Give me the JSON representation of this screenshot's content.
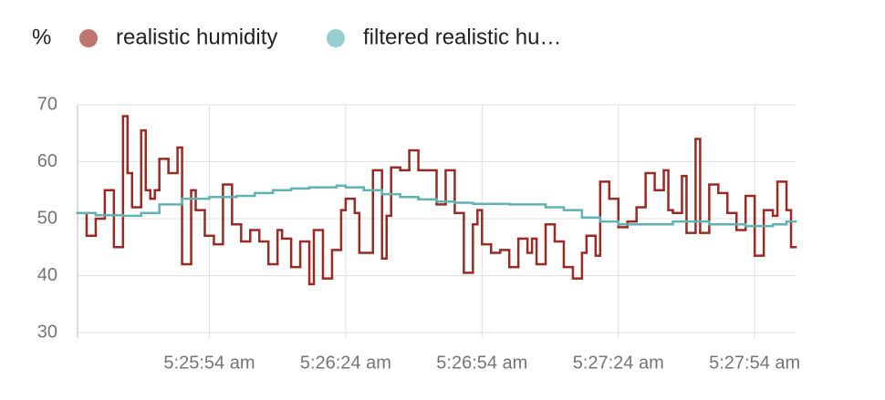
{
  "chart_data": {
    "type": "step-line",
    "unit": "%",
    "series": [
      {
        "name": "realistic humidity",
        "color": "#9b2a24",
        "x": [
          "5:25:25 am",
          "5:25:27 am",
          "5:25:29 am",
          "5:25:31 am",
          "5:25:33 am",
          "5:25:35 am",
          "5:25:36 am",
          "5:25:37 am",
          "5:25:39 am",
          "5:25:40 am",
          "5:25:41 am",
          "5:25:42 am",
          "5:25:43 am",
          "5:25:45 am",
          "5:25:47 am",
          "5:25:48 am",
          "5:25:50 am",
          "5:25:51 am",
          "5:25:53 am",
          "5:25:55 am",
          "5:25:57 am",
          "5:25:59 am",
          "5:26:01 am",
          "5:26:03 am",
          "5:26:05 am",
          "5:26:07 am",
          "5:26:09 am",
          "5:26:10 am",
          "5:26:12 am",
          "5:26:14 am",
          "5:26:16 am",
          "5:26:17 am",
          "5:26:19 am",
          "5:26:21 am",
          "5:26:23 am",
          "5:26:24 am",
          "5:26:26 am",
          "5:26:27 am",
          "5:26:30 am",
          "5:26:32 am",
          "5:26:33 am",
          "5:26:34 am",
          "5:26:36 am",
          "5:26:38 am",
          "5:26:40 am",
          "5:26:44 am",
          "5:26:46 am",
          "5:26:48 am",
          "5:26:50 am",
          "5:26:52 am",
          "5:26:53 am",
          "5:26:54 am",
          "5:26:56 am",
          "5:26:58 am",
          "5:27:00 am",
          "5:27:02 am",
          "5:27:04 am",
          "5:27:05 am",
          "5:27:06 am",
          "5:27:08 am",
          "5:27:10 am",
          "5:27:12 am",
          "5:27:14 am",
          "5:27:16 am",
          "5:27:17 am",
          "5:27:19 am",
          "5:27:20 am",
          "5:27:22 am",
          "5:27:24 am",
          "5:27:26 am",
          "5:27:28 am",
          "5:27:30 am",
          "5:27:32 am",
          "5:27:34 am",
          "5:27:35 am",
          "5:27:36 am",
          "5:27:38 am",
          "5:27:39 am",
          "5:27:41 am",
          "5:27:42 am",
          "5:27:44 am",
          "5:27:46 am",
          "5:27:48 am",
          "5:27:50 am",
          "5:27:52 am",
          "5:27:54 am",
          "5:27:56 am",
          "5:27:58 am",
          "5:27:59 am",
          "5:28:01 am",
          "5:28:02 am"
        ],
        "values": [
          51,
          47,
          50,
          55,
          45,
          68,
          58,
          52,
          65.5,
          55,
          53.5,
          55,
          60.5,
          58,
          62.5,
          42,
          55,
          51.5,
          47,
          45.5,
          56,
          49,
          46,
          48,
          46,
          42,
          48,
          46.5,
          41.5,
          46,
          38.5,
          48,
          39.5,
          44.5,
          51.5,
          53.5,
          51,
          44,
          58.5,
          43,
          50.5,
          59,
          58.5,
          62,
          58.5,
          52.5,
          58.5,
          51,
          40.5,
          49,
          51.5,
          45.5,
          44,
          44.5,
          41.5,
          46.5,
          44,
          46.5,
          42,
          49,
          46,
          41.5,
          39.5,
          44,
          47,
          43.5,
          56.5,
          53.5,
          48.5,
          49.5,
          52,
          58,
          55,
          58.5,
          51.5,
          51,
          57.5,
          47.5,
          64,
          47.5,
          56,
          54.5,
          51,
          48,
          54,
          43.5,
          51.5,
          50.5,
          56.5,
          51.5,
          45
        ]
      },
      {
        "name": "filtered realistic hu…",
        "color": "#5fb4b3",
        "x": [
          "5:25:25 am",
          "5:25:29 am",
          "5:25:35 am",
          "5:25:39 am",
          "5:25:43 am",
          "5:25:48 am",
          "5:25:54 am",
          "5:26:00 am",
          "5:26:04 am",
          "5:26:08 am",
          "5:26:12 am",
          "5:26:16 am",
          "5:26:22 am",
          "5:26:24 am",
          "5:26:28 am",
          "5:26:32 am",
          "5:26:36 am",
          "5:26:40 am",
          "5:26:44 am",
          "5:26:48 am",
          "5:26:52 am",
          "5:27:00 am",
          "5:27:08 am",
          "5:27:12 am",
          "5:27:16 am",
          "5:27:20 am",
          "5:27:24 am",
          "5:27:36 am",
          "5:27:44 am",
          "5:27:52 am",
          "5:27:58 am",
          "5:28:01 am"
        ],
        "values": [
          51,
          50.6,
          50.5,
          51,
          52.5,
          53.5,
          53.8,
          54,
          54.5,
          55,
          55.3,
          55.5,
          55.8,
          55.5,
          55,
          54.3,
          53.8,
          53.4,
          53,
          52.8,
          52.6,
          52.5,
          52,
          51.5,
          50.2,
          49.5,
          49,
          49.5,
          49,
          48.7,
          49,
          49.5
        ]
      }
    ],
    "xlim": [
      "5:25:25 am",
      "5:28:03 am"
    ],
    "xticks": [
      "5:25:54 am",
      "5:26:24 am",
      "5:26:54 am",
      "5:27:24 am",
      "5:27:54 am"
    ],
    "ylim": [
      30,
      70
    ],
    "yticks": [
      30,
      40,
      50,
      60,
      70
    ],
    "grid": true
  }
}
